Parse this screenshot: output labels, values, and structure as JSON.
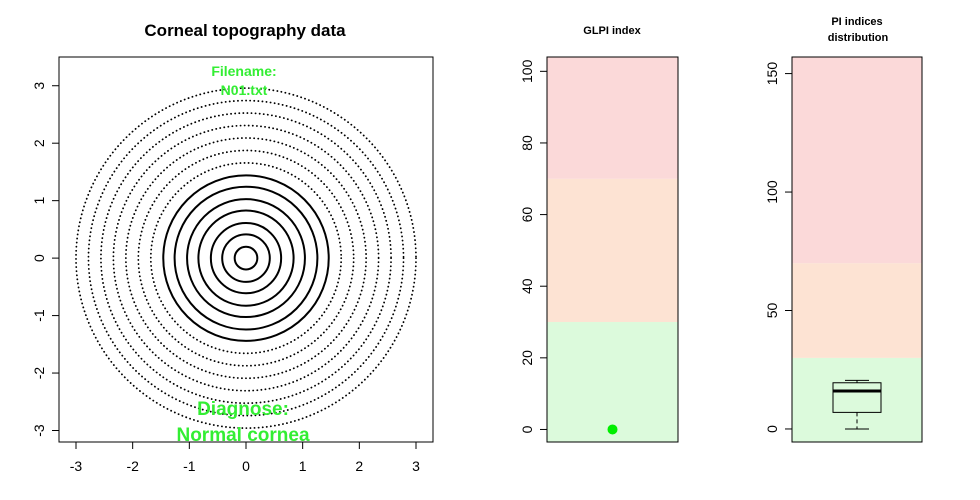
{
  "colors": {
    "annotation": "#33ee33",
    "zone_red": "#fbd9d9",
    "zone_orange": "#fde3d3",
    "zone_green": "#dcfadc",
    "point": "#00ee00"
  },
  "chart_data": [
    {
      "type": "scatter",
      "title": "Corneal topography data",
      "xlabel": "",
      "ylabel": "",
      "xlim": [
        -3.3,
        3.3
      ],
      "ylim": [
        -3.2,
        3.5
      ],
      "xticks": [
        -3,
        -2,
        -1,
        0,
        1,
        2,
        3
      ],
      "yticks": [
        -3,
        -2,
        -1,
        0,
        1,
        2,
        3
      ],
      "rings": [
        0.2,
        0.42,
        0.62,
        0.84,
        1.04,
        1.26,
        1.46,
        1.68,
        1.9,
        2.12,
        2.34,
        2.56,
        2.78,
        3.0
      ],
      "annotations": {
        "filename_label": "Filename:",
        "filename_value": "N01.txt",
        "diagnose_label": "Diagnose:",
        "diagnose_value": "Normal cornea"
      }
    },
    {
      "type": "scatter",
      "title": "GLPI index",
      "ylim": [
        -3.5,
        104
      ],
      "yticks": [
        0,
        20,
        40,
        60,
        80,
        100
      ],
      "zones": [
        {
          "from": -3.5,
          "to": 30,
          "color": "green"
        },
        {
          "from": 30,
          "to": 70,
          "color": "orange"
        },
        {
          "from": 70,
          "to": 104,
          "color": "red"
        }
      ],
      "points": [
        {
          "x": 1,
          "y": 0
        }
      ]
    },
    {
      "type": "box",
      "title_line1": "PI indices",
      "title_line2": "distribution",
      "ylim": [
        -5.5,
        157
      ],
      "yticks": [
        0,
        50,
        100,
        150
      ],
      "zones": [
        {
          "from": -5.5,
          "to": 30,
          "color": "green"
        },
        {
          "from": 30,
          "to": 70,
          "color": "orange"
        },
        {
          "from": 70,
          "to": 157,
          "color": "red"
        }
      ],
      "box": {
        "min": 0,
        "q1": 7,
        "median": 16,
        "q3": 19.5,
        "max": 20.5
      }
    }
  ]
}
